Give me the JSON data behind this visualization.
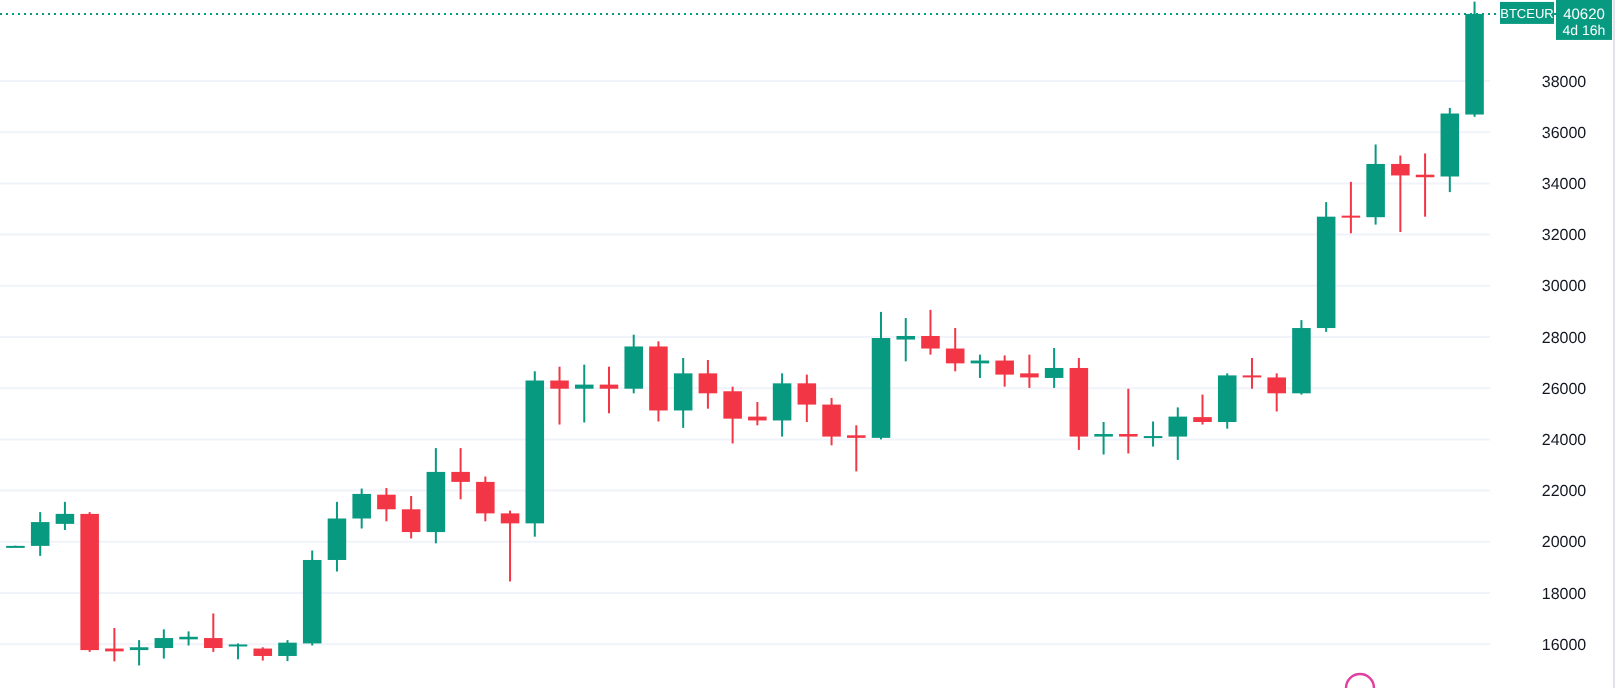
{
  "chart_data": {
    "type": "candlestick",
    "categories": [
      null,
      null,
      null,
      null,
      null,
      null,
      null,
      null,
      null,
      null,
      null,
      null,
      null,
      null,
      null,
      null,
      null,
      null,
      null,
      null,
      null,
      null,
      null,
      null,
      null,
      null,
      null,
      null,
      null,
      null,
      null,
      null,
      null,
      null,
      null,
      null,
      null,
      null,
      null,
      null,
      null,
      null,
      null,
      null,
      null,
      null,
      null,
      null,
      null,
      null,
      null,
      null,
      null,
      null,
      null,
      null,
      null,
      null,
      null,
      null
    ],
    "ohlc": [
      [
        19830,
        19850,
        19820,
        19840
      ],
      [
        19840,
        21160,
        19450,
        20770
      ],
      [
        20700,
        21560,
        20460,
        21090
      ],
      [
        21090,
        21160,
        15700,
        15770
      ],
      [
        15830,
        16630,
        15330,
        15720
      ],
      [
        15770,
        16160,
        15170,
        15880
      ],
      [
        15850,
        16580,
        15440,
        16240
      ],
      [
        16190,
        16500,
        15950,
        16290
      ],
      [
        16240,
        17200,
        15700,
        15850
      ],
      [
        15930,
        16030,
        15410,
        15990
      ],
      [
        15830,
        15880,
        15360,
        15540
      ],
      [
        15540,
        16160,
        15340,
        16060
      ],
      [
        16030,
        19660,
        15950,
        19290
      ],
      [
        19290,
        21560,
        18840,
        20910
      ],
      [
        20910,
        22080,
        20520,
        21870
      ],
      [
        21840,
        22100,
        20800,
        21270
      ],
      [
        21270,
        21790,
        20130,
        20380
      ],
      [
        20380,
        23660,
        19940,
        22730
      ],
      [
        22730,
        23660,
        21660,
        22340
      ],
      [
        22340,
        22550,
        20800,
        21110
      ],
      [
        21110,
        21220,
        18450,
        20720
      ],
      [
        20720,
        26660,
        20200,
        26300
      ],
      [
        26300,
        26840,
        24580,
        25980
      ],
      [
        25980,
        26920,
        24660,
        26140
      ],
      [
        26140,
        26840,
        25020,
        25980
      ],
      [
        25980,
        28090,
        25800,
        27630
      ],
      [
        27630,
        27830,
        24700,
        25130
      ],
      [
        25130,
        27180,
        24450,
        26580
      ],
      [
        26580,
        27100,
        25200,
        25800
      ],
      [
        25880,
        26060,
        23840,
        24810
      ],
      [
        24890,
        25460,
        24550,
        24740
      ],
      [
        24740,
        26580,
        24110,
        26190
      ],
      [
        26190,
        26530,
        24680,
        25360
      ],
      [
        25360,
        25620,
        23770,
        24110
      ],
      [
        24160,
        24550,
        22750,
        24060
      ],
      [
        24060,
        28980,
        24000,
        27960
      ],
      [
        27900,
        28740,
        27050,
        28040
      ],
      [
        28040,
        29060,
        27310,
        27550
      ],
      [
        27550,
        28350,
        26660,
        26970
      ],
      [
        26970,
        27310,
        26400,
        27080
      ],
      [
        27080,
        27280,
        26060,
        26530
      ],
      [
        26580,
        27310,
        26010,
        26420
      ],
      [
        26400,
        27570,
        26010,
        26790
      ],
      [
        26790,
        27180,
        23590,
        24110
      ],
      [
        24110,
        24680,
        23410,
        24210
      ],
      [
        24210,
        25980,
        23450,
        24110
      ],
      [
        24080,
        24700,
        23720,
        24130
      ],
      [
        24110,
        25250,
        23200,
        24890
      ],
      [
        24870,
        25750,
        24580,
        24680
      ],
      [
        24680,
        26580,
        24420,
        26500
      ],
      [
        26500,
        27180,
        25980,
        26420
      ],
      [
        26420,
        26580,
        25090,
        25800
      ],
      [
        25800,
        28660,
        25750,
        28350
      ],
      [
        28350,
        33270,
        28200,
        32700
      ],
      [
        32740,
        34060,
        32050,
        32680
      ],
      [
        32680,
        35520,
        32390,
        34760
      ],
      [
        34760,
        35090,
        32100,
        34310
      ],
      [
        34340,
        35170,
        32700,
        34240
      ],
      [
        34270,
        36950,
        33660,
        36730
      ],
      [
        36690,
        41100,
        36600,
        40620
      ]
    ],
    "colors": [
      "#089981",
      "#089981",
      "#089981",
      "#f23645",
      "#f23645",
      "#089981",
      "#089981",
      "#089981",
      "#f23645",
      "#089981",
      "#f23645",
      "#089981",
      "#089981",
      "#089981",
      "#089981",
      "#f23645",
      "#f23645",
      "#089981",
      "#f23645",
      "#f23645",
      "#f23645",
      "#089981",
      "#f23645",
      "#089981",
      "#f23645",
      "#089981",
      "#f23645",
      "#089981",
      "#f23645",
      "#f23645",
      "#f23645",
      "#089981",
      "#f23645",
      "#f23645",
      "#f23645",
      "#089981",
      "#089981",
      "#f23645",
      "#f23645",
      "#089981",
      "#f23645",
      "#f23645",
      "#089981",
      "#f23645",
      "#089981",
      "#f23645",
      "#089981",
      "#089981",
      "#f23645",
      "#089981",
      "#f23645",
      "#f23645",
      "#089981",
      "#089981",
      "#f23645",
      "#089981",
      "#f23645",
      "#f23645",
      "#089981",
      "#089981"
    ],
    "ylim": [
      14289,
      41164
    ],
    "yticks": [
      16000,
      18000,
      20000,
      22000,
      24000,
      26000,
      28000,
      30000,
      32000,
      34000,
      36000,
      38000
    ],
    "grid": "y",
    "tick_labels": "y",
    "ref_lines": [
      {
        "axis": "y",
        "value": 40620,
        "label": "40620",
        "color": "#089981",
        "line_style": "dotted"
      }
    ],
    "annotations": [
      "BTCEUR",
      "4d 16h"
    ]
  }
}
